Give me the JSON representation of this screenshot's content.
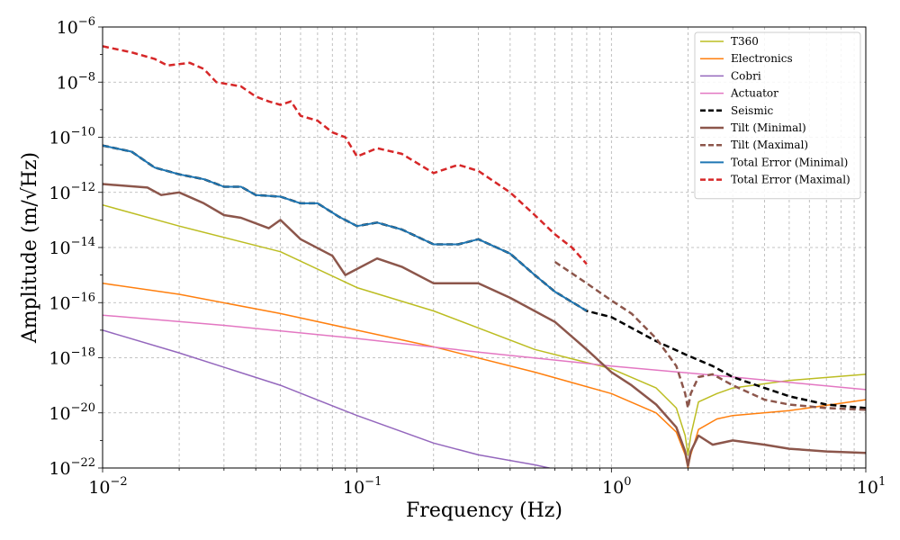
{
  "chart_data": {
    "type": "line",
    "xscale": "log",
    "yscale": "log",
    "xlabel": "Frequency (Hz)",
    "ylabel": "Amplitude (m/√Hz)",
    "xlim": [
      0.01,
      10
    ],
    "ylim": [
      1e-22,
      1e-06
    ],
    "grid": true,
    "legend_position": "top-right",
    "x_ticks": [
      {
        "value": 0.01,
        "base": "10",
        "exp": "−2"
      },
      {
        "value": 0.1,
        "base": "10",
        "exp": "−1"
      },
      {
        "value": 1,
        "base": "10",
        "exp": "0"
      },
      {
        "value": 10,
        "base": "10",
        "exp": "1"
      }
    ],
    "y_ticks": [
      {
        "value": 1e-22,
        "base": "10",
        "exp": "−22"
      },
      {
        "value": 1e-20,
        "base": "10",
        "exp": "−20"
      },
      {
        "value": 1e-18,
        "base": "10",
        "exp": "−18"
      },
      {
        "value": 1e-16,
        "base": "10",
        "exp": "−16"
      },
      {
        "value": 1e-14,
        "base": "10",
        "exp": "−14"
      },
      {
        "value": 1e-12,
        "base": "10",
        "exp": "−12"
      },
      {
        "value": 1e-10,
        "base": "10",
        "exp": "−10"
      },
      {
        "value": 1e-08,
        "base": "10",
        "exp": "−8"
      },
      {
        "value": 1e-06,
        "base": "10",
        "exp": "−6"
      }
    ],
    "series": [
      {
        "name": "T360",
        "color": "#bcbd22",
        "dash": "solid",
        "width": 1.5,
        "points": [
          [
            0.01,
            3.5e-13
          ],
          [
            0.02,
            6e-14
          ],
          [
            0.05,
            7e-15
          ],
          [
            0.1,
            3.5e-16
          ],
          [
            0.2,
            5e-17
          ],
          [
            0.5,
            2e-18
          ],
          [
            1,
            4e-19
          ],
          [
            1.5,
            8e-20
          ],
          [
            1.8,
            1.5e-20
          ],
          [
            1.95,
            1.5e-21
          ],
          [
            2.0,
            3e-22
          ],
          [
            2.05,
            1.5e-21
          ],
          [
            2.2,
            2.5e-20
          ],
          [
            2.6,
            5e-20
          ],
          [
            3,
            8e-20
          ],
          [
            5,
            1.5e-19
          ],
          [
            10,
            2.5e-19
          ]
        ]
      },
      {
        "name": "Electronics",
        "color": "#ff7f0e",
        "dash": "solid",
        "width": 1.5,
        "points": [
          [
            0.01,
            5e-16
          ],
          [
            0.02,
            2e-16
          ],
          [
            0.05,
            4e-17
          ],
          [
            0.1,
            1e-17
          ],
          [
            0.2,
            2.5e-18
          ],
          [
            0.5,
            3e-19
          ],
          [
            1,
            5e-20
          ],
          [
            1.5,
            1e-20
          ],
          [
            1.8,
            2e-21
          ],
          [
            1.95,
            3e-22
          ],
          [
            2.0,
            1e-22
          ],
          [
            2.05,
            3e-22
          ],
          [
            2.2,
            2.5e-21
          ],
          [
            2.6,
            6e-21
          ],
          [
            3,
            8e-21
          ],
          [
            5,
            1.2e-20
          ],
          [
            10,
            3e-20
          ]
        ]
      },
      {
        "name": "Cobri",
        "color": "#9467bd",
        "dash": "solid",
        "width": 1.5,
        "points": [
          [
            0.01,
            1e-17
          ],
          [
            0.02,
            1.5e-18
          ],
          [
            0.05,
            1e-19
          ],
          [
            0.1,
            8e-21
          ],
          [
            0.2,
            8e-22
          ],
          [
            0.3,
            3e-22
          ],
          [
            0.5,
            1.3e-22
          ],
          [
            0.6,
            9e-23
          ]
        ]
      },
      {
        "name": "Actuator",
        "color": "#e377c2",
        "dash": "solid",
        "width": 1.5,
        "points": [
          [
            0.01,
            3.5e-17
          ],
          [
            0.03,
            1.5e-17
          ],
          [
            0.1,
            5e-18
          ],
          [
            0.3,
            1.6e-18
          ],
          [
            1,
            5e-19
          ],
          [
            3,
            2e-19
          ],
          [
            10,
            7e-20
          ]
        ]
      },
      {
        "name": "Seismic",
        "color": "#000000",
        "dash": "dashed",
        "width": 2.5,
        "points": [
          [
            0.01,
            5e-11
          ],
          [
            0.013,
            3e-11
          ],
          [
            0.016,
            8e-12
          ],
          [
            0.02,
            4.5e-12
          ],
          [
            0.025,
            3e-12
          ],
          [
            0.03,
            1.6e-12
          ],
          [
            0.035,
            1.6e-12
          ],
          [
            0.04,
            8e-13
          ],
          [
            0.05,
            7e-13
          ],
          [
            0.06,
            4e-13
          ],
          [
            0.07,
            4e-13
          ],
          [
            0.085,
            1.3e-13
          ],
          [
            0.1,
            6e-14
          ],
          [
            0.12,
            8e-14
          ],
          [
            0.15,
            4.5e-14
          ],
          [
            0.2,
            1.3e-14
          ],
          [
            0.25,
            1.3e-14
          ],
          [
            0.3,
            2e-14
          ],
          [
            0.4,
            6e-15
          ],
          [
            0.5,
            1e-15
          ],
          [
            0.6,
            2.5e-16
          ],
          [
            0.8,
            5e-17
          ],
          [
            1,
            3e-17
          ],
          [
            1.5,
            4e-18
          ],
          [
            2,
            1.2e-18
          ],
          [
            2.5,
            5e-19
          ],
          [
            3,
            2e-19
          ],
          [
            4,
            8e-20
          ],
          [
            5,
            4e-20
          ],
          [
            7,
            2e-20
          ],
          [
            10,
            1.5e-20
          ]
        ]
      },
      {
        "name": "Tilt (Minimal)",
        "color": "#8c564b",
        "dash": "solid",
        "width": 2.5,
        "points": [
          [
            0.01,
            2e-12
          ],
          [
            0.015,
            1.5e-12
          ],
          [
            0.017,
            8e-13
          ],
          [
            0.02,
            1e-12
          ],
          [
            0.025,
            4e-13
          ],
          [
            0.03,
            1.5e-13
          ],
          [
            0.035,
            1.2e-13
          ],
          [
            0.045,
            5e-14
          ],
          [
            0.05,
            1e-13
          ],
          [
            0.06,
            2e-14
          ],
          [
            0.08,
            5e-15
          ],
          [
            0.09,
            1e-15
          ],
          [
            0.12,
            4e-15
          ],
          [
            0.15,
            2e-15
          ],
          [
            0.2,
            5e-16
          ],
          [
            0.3,
            5e-16
          ],
          [
            0.4,
            1.5e-16
          ],
          [
            0.6,
            2e-17
          ],
          [
            0.8,
            2e-18
          ],
          [
            1,
            3e-19
          ],
          [
            1.2,
            1e-19
          ],
          [
            1.5,
            2e-20
          ],
          [
            1.8,
            3e-21
          ],
          [
            1.95,
            4e-22
          ],
          [
            2.0,
            1.2e-22
          ],
          [
            2.05,
            4e-22
          ],
          [
            2.2,
            1.5e-21
          ],
          [
            2.5,
            7e-22
          ],
          [
            3,
            1e-21
          ],
          [
            4,
            7e-22
          ],
          [
            5,
            5e-22
          ],
          [
            7,
            4e-22
          ],
          [
            10,
            3.5e-22
          ]
        ]
      },
      {
        "name": "Tilt (Maximal)",
        "color": "#8c564b",
        "dash": "dashed",
        "width": 2.5,
        "points": [
          [
            0.6,
            3e-15
          ],
          [
            0.8,
            5e-16
          ],
          [
            1,
            1.2e-16
          ],
          [
            1.2,
            4e-17
          ],
          [
            1.5,
            5e-18
          ],
          [
            1.8,
            5e-19
          ],
          [
            1.95,
            5e-20
          ],
          [
            2.0,
            1.5e-20
          ],
          [
            2.05,
            5e-20
          ],
          [
            2.2,
            2e-19
          ],
          [
            2.5,
            2.5e-19
          ],
          [
            3,
            1e-19
          ],
          [
            4,
            3e-20
          ],
          [
            5,
            2e-20
          ],
          [
            7,
            1.5e-20
          ],
          [
            10,
            1.3e-20
          ]
        ]
      },
      {
        "name": "Total Error (Minimal)",
        "color": "#1f77b4",
        "dash": "solid",
        "width": 2,
        "points": [
          [
            0.01,
            5e-11
          ],
          [
            0.013,
            3e-11
          ],
          [
            0.016,
            8e-12
          ],
          [
            0.02,
            4.5e-12
          ],
          [
            0.025,
            3e-12
          ],
          [
            0.03,
            1.6e-12
          ],
          [
            0.035,
            1.6e-12
          ],
          [
            0.04,
            8e-13
          ],
          [
            0.05,
            7e-13
          ],
          [
            0.06,
            4e-13
          ],
          [
            0.07,
            4e-13
          ],
          [
            0.085,
            1.3e-13
          ],
          [
            0.1,
            6e-14
          ],
          [
            0.12,
            8e-14
          ],
          [
            0.15,
            4.5e-14
          ],
          [
            0.2,
            1.3e-14
          ],
          [
            0.25,
            1.3e-14
          ],
          [
            0.3,
            2e-14
          ],
          [
            0.4,
            6e-15
          ],
          [
            0.5,
            1e-15
          ],
          [
            0.6,
            2.5e-16
          ],
          [
            0.8,
            5e-17
          ]
        ]
      },
      {
        "name": "Total Error (Maximal)",
        "color": "#d62728",
        "dash": "dashed",
        "width": 2.5,
        "points": [
          [
            0.01,
            2e-07
          ],
          [
            0.013,
            1.2e-07
          ],
          [
            0.016,
            7e-08
          ],
          [
            0.018,
            4e-08
          ],
          [
            0.022,
            5e-08
          ],
          [
            0.025,
            3e-08
          ],
          [
            0.028,
            1e-08
          ],
          [
            0.035,
            7e-09
          ],
          [
            0.04,
            3e-09
          ],
          [
            0.045,
            2e-09
          ],
          [
            0.05,
            1.5e-09
          ],
          [
            0.055,
            2e-09
          ],
          [
            0.06,
            6e-10
          ],
          [
            0.07,
            4e-10
          ],
          [
            0.08,
            1.5e-10
          ],
          [
            0.09,
            1e-10
          ],
          [
            0.1,
            2e-11
          ],
          [
            0.12,
            4e-11
          ],
          [
            0.15,
            2.5e-11
          ],
          [
            0.2,
            5e-12
          ],
          [
            0.25,
            1e-11
          ],
          [
            0.3,
            6e-12
          ],
          [
            0.4,
            1e-12
          ],
          [
            0.5,
            1.5e-13
          ],
          [
            0.6,
            3e-14
          ],
          [
            0.7,
            1e-14
          ],
          [
            0.8,
            2.5e-15
          ]
        ]
      }
    ]
  }
}
